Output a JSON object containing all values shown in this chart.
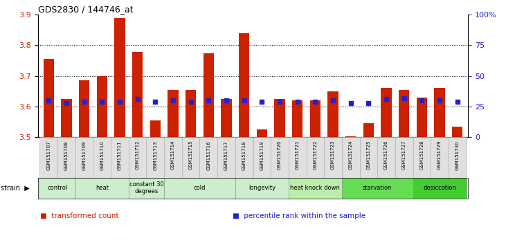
{
  "title": "GDS2830 / 144746_at",
  "samples": [
    "GSM151707",
    "GSM151708",
    "GSM151709",
    "GSM151710",
    "GSM151711",
    "GSM151712",
    "GSM151713",
    "GSM151714",
    "GSM151715",
    "GSM151716",
    "GSM151717",
    "GSM151718",
    "GSM151719",
    "GSM151720",
    "GSM151721",
    "GSM151722",
    "GSM151723",
    "GSM151724",
    "GSM151725",
    "GSM151726",
    "GSM151727",
    "GSM151728",
    "GSM151729",
    "GSM151730"
  ],
  "bar_values": [
    3.755,
    3.625,
    3.685,
    3.7,
    3.89,
    3.778,
    3.555,
    3.655,
    3.655,
    3.775,
    3.625,
    3.84,
    3.525,
    3.625,
    3.62,
    3.62,
    3.65,
    3.502,
    3.545,
    3.66,
    3.655,
    3.63,
    3.66,
    3.535
  ],
  "percentile_values": [
    30,
    28,
    29,
    29,
    29,
    31,
    29,
    30,
    29,
    30,
    30,
    30,
    29,
    29,
    29,
    29,
    30,
    28,
    28,
    31,
    32,
    30,
    30,
    29
  ],
  "ymin": 3.5,
  "ymax": 3.9,
  "yticks_left": [
    3.5,
    3.6,
    3.7,
    3.8,
    3.9
  ],
  "yticks_right": [
    0,
    25,
    50,
    75,
    100
  ],
  "groups": [
    {
      "label": "control",
      "indices": [
        0,
        1
      ]
    },
    {
      "label": "heat",
      "indices": [
        2,
        3,
        4
      ]
    },
    {
      "label": "constant 30\ndegrees",
      "indices": [
        5,
        6
      ]
    },
    {
      "label": "cold",
      "indices": [
        7,
        8,
        9,
        10
      ]
    },
    {
      "label": "longevity",
      "indices": [
        11,
        12,
        13
      ]
    },
    {
      "label": "heat knock down",
      "indices": [
        14,
        15,
        16
      ]
    },
    {
      "label": "starvation",
      "indices": [
        17,
        18,
        19,
        20
      ]
    },
    {
      "label": "desiccation",
      "indices": [
        21,
        22,
        23
      ]
    }
  ],
  "group_colors": [
    "#cceecc",
    "#cceecc",
    "#cceecc",
    "#cceecc",
    "#cceecc",
    "#bbeeaa",
    "#66dd55",
    "#44cc33"
  ],
  "bar_color": "#cc2200",
  "percentile_color": "#2222cc",
  "bg_color": "#ffffff",
  "legend_items": [
    {
      "label": "transformed count",
      "color": "#cc2200"
    },
    {
      "label": "percentile rank within the sample",
      "color": "#2222cc"
    }
  ]
}
